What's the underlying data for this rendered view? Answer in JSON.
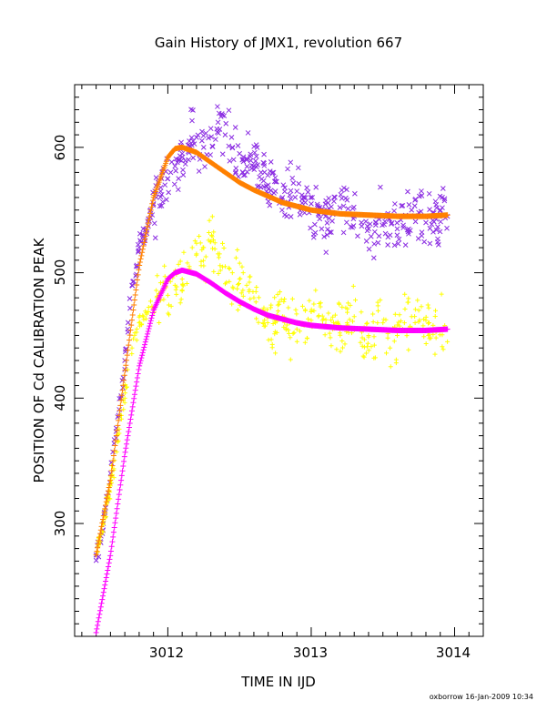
{
  "chart_data": {
    "type": "scatter",
    "title": "Gain History of JMX1, revolution 667",
    "xlabel": "TIME IN IJD",
    "ylabel": "POSITION OF Cd CALIBRATION PEAK",
    "xlim": [
      3011.35,
      3014.2
    ],
    "ylim": [
      210,
      650
    ],
    "xticks": [
      3012,
      3013,
      3014
    ],
    "xtick_labels": [
      "3012",
      "3013",
      "3014"
    ],
    "yticks": [
      300,
      400,
      500,
      600
    ],
    "ytick_labels": [
      "300",
      "400",
      "500",
      "600"
    ],
    "grid": false,
    "legend": "none",
    "series": [
      {
        "marker": "x",
        "color": "#8a2be2",
        "kind": "scatter",
        "points": [
          [
            3011.5,
            275
          ],
          [
            3011.55,
            300
          ],
          [
            3011.6,
            340
          ],
          [
            3011.65,
            385
          ],
          [
            3011.7,
            430
          ],
          [
            3011.72,
            455
          ],
          [
            3011.75,
            490
          ],
          [
            3011.78,
            505
          ],
          [
            3011.8,
            520
          ],
          [
            3011.85,
            535
          ],
          [
            3011.88,
            550
          ],
          [
            3011.9,
            555
          ],
          [
            3011.92,
            560
          ],
          [
            3011.95,
            565
          ],
          [
            3011.98,
            570
          ],
          [
            3012.0,
            575
          ],
          [
            3012.02,
            580
          ],
          [
            3012.05,
            585
          ],
          [
            3012.08,
            590
          ],
          [
            3012.1,
            595
          ],
          [
            3012.15,
            605
          ],
          [
            3012.2,
            608
          ],
          [
            3012.25,
            600
          ],
          [
            3012.3,
            615
          ],
          [
            3012.35,
            620
          ],
          [
            3012.4,
            610
          ],
          [
            3012.45,
            600
          ],
          [
            3012.5,
            595
          ],
          [
            3012.55,
            590
          ],
          [
            3012.6,
            585
          ],
          [
            3012.65,
            580
          ],
          [
            3012.7,
            570
          ],
          [
            3012.75,
            565
          ],
          [
            3012.8,
            560
          ],
          [
            3012.85,
            562
          ],
          [
            3012.9,
            565
          ],
          [
            3012.95,
            560
          ],
          [
            3013.0,
            555
          ],
          [
            3013.05,
            550
          ],
          [
            3013.1,
            545
          ],
          [
            3013.15,
            548
          ],
          [
            3013.2,
            552
          ],
          [
            3013.25,
            558
          ],
          [
            3013.3,
            545
          ],
          [
            3013.35,
            540
          ],
          [
            3013.4,
            535
          ],
          [
            3013.45,
            540
          ],
          [
            3013.5,
            545
          ],
          [
            3013.55,
            530
          ],
          [
            3013.6,
            535
          ],
          [
            3013.65,
            545
          ],
          [
            3013.7,
            550
          ],
          [
            3013.75,
            548
          ],
          [
            3013.8,
            540
          ],
          [
            3013.85,
            545
          ],
          [
            3013.9,
            550
          ],
          [
            3013.95,
            545
          ]
        ]
      },
      {
        "marker": "+",
        "color": "#ffff00",
        "kind": "scatter",
        "points": [
          [
            3011.5,
            275
          ],
          [
            3011.55,
            300
          ],
          [
            3011.6,
            330
          ],
          [
            3011.65,
            365
          ],
          [
            3011.7,
            400
          ],
          [
            3011.75,
            440
          ],
          [
            3011.8,
            460
          ],
          [
            3011.85,
            468
          ],
          [
            3011.9,
            472
          ],
          [
            3011.95,
            478
          ],
          [
            3012.0,
            482
          ],
          [
            3012.05,
            490
          ],
          [
            3012.1,
            495
          ],
          [
            3012.15,
            505
          ],
          [
            3012.2,
            515
          ],
          [
            3012.25,
            520
          ],
          [
            3012.3,
            525
          ],
          [
            3012.35,
            515
          ],
          [
            3012.4,
            505
          ],
          [
            3012.45,
            500
          ],
          [
            3012.5,
            495
          ],
          [
            3012.55,
            490
          ],
          [
            3012.6,
            480
          ],
          [
            3012.65,
            470
          ],
          [
            3012.7,
            465
          ],
          [
            3012.75,
            460
          ],
          [
            3012.8,
            465
          ],
          [
            3012.85,
            460
          ],
          [
            3012.9,
            455
          ],
          [
            3012.95,
            458
          ],
          [
            3013.0,
            462
          ],
          [
            3013.05,
            465
          ],
          [
            3013.1,
            458
          ],
          [
            3013.15,
            455
          ],
          [
            3013.2,
            452
          ],
          [
            3013.25,
            460
          ],
          [
            3013.3,
            465
          ],
          [
            3013.35,
            455
          ],
          [
            3013.4,
            450
          ],
          [
            3013.45,
            455
          ],
          [
            3013.5,
            460
          ],
          [
            3013.55,
            440
          ],
          [
            3013.6,
            450
          ],
          [
            3013.65,
            460
          ],
          [
            3013.7,
            465
          ],
          [
            3013.75,
            470
          ],
          [
            3013.8,
            462
          ],
          [
            3013.85,
            458
          ],
          [
            3013.9,
            455
          ],
          [
            3013.95,
            445
          ]
        ]
      },
      {
        "marker": "+",
        "color": "#ff8000",
        "kind": "fit",
        "points": [
          [
            3011.5,
            275
          ],
          [
            3011.6,
            335
          ],
          [
            3011.7,
            420
          ],
          [
            3011.8,
            505
          ],
          [
            3011.9,
            560
          ],
          [
            3012.0,
            592
          ],
          [
            3012.05,
            599
          ],
          [
            3012.1,
            600
          ],
          [
            3012.2,
            596
          ],
          [
            3012.3,
            588
          ],
          [
            3012.4,
            580
          ],
          [
            3012.5,
            572
          ],
          [
            3012.6,
            566
          ],
          [
            3012.7,
            561
          ],
          [
            3012.8,
            556
          ],
          [
            3012.9,
            553
          ],
          [
            3013.0,
            550
          ],
          [
            3013.2,
            547
          ],
          [
            3013.4,
            546
          ],
          [
            3013.6,
            545
          ],
          [
            3013.8,
            545
          ],
          [
            3013.95,
            546
          ]
        ]
      },
      {
        "marker": "+",
        "color": "#ff00ff",
        "kind": "fit",
        "points": [
          [
            3011.5,
            213
          ],
          [
            3011.6,
            275
          ],
          [
            3011.7,
            355
          ],
          [
            3011.8,
            425
          ],
          [
            3011.9,
            470
          ],
          [
            3012.0,
            495
          ],
          [
            3012.05,
            500
          ],
          [
            3012.1,
            502
          ],
          [
            3012.2,
            499
          ],
          [
            3012.3,
            492
          ],
          [
            3012.4,
            484
          ],
          [
            3012.5,
            477
          ],
          [
            3012.6,
            471
          ],
          [
            3012.7,
            466
          ],
          [
            3012.8,
            463
          ],
          [
            3012.9,
            460
          ],
          [
            3013.0,
            458
          ],
          [
            3013.2,
            456
          ],
          [
            3013.4,
            455
          ],
          [
            3013.6,
            454
          ],
          [
            3013.8,
            454
          ],
          [
            3013.95,
            455
          ]
        ]
      }
    ],
    "footer_note": "oxborrow 16-Jan-2009 10:34"
  }
}
